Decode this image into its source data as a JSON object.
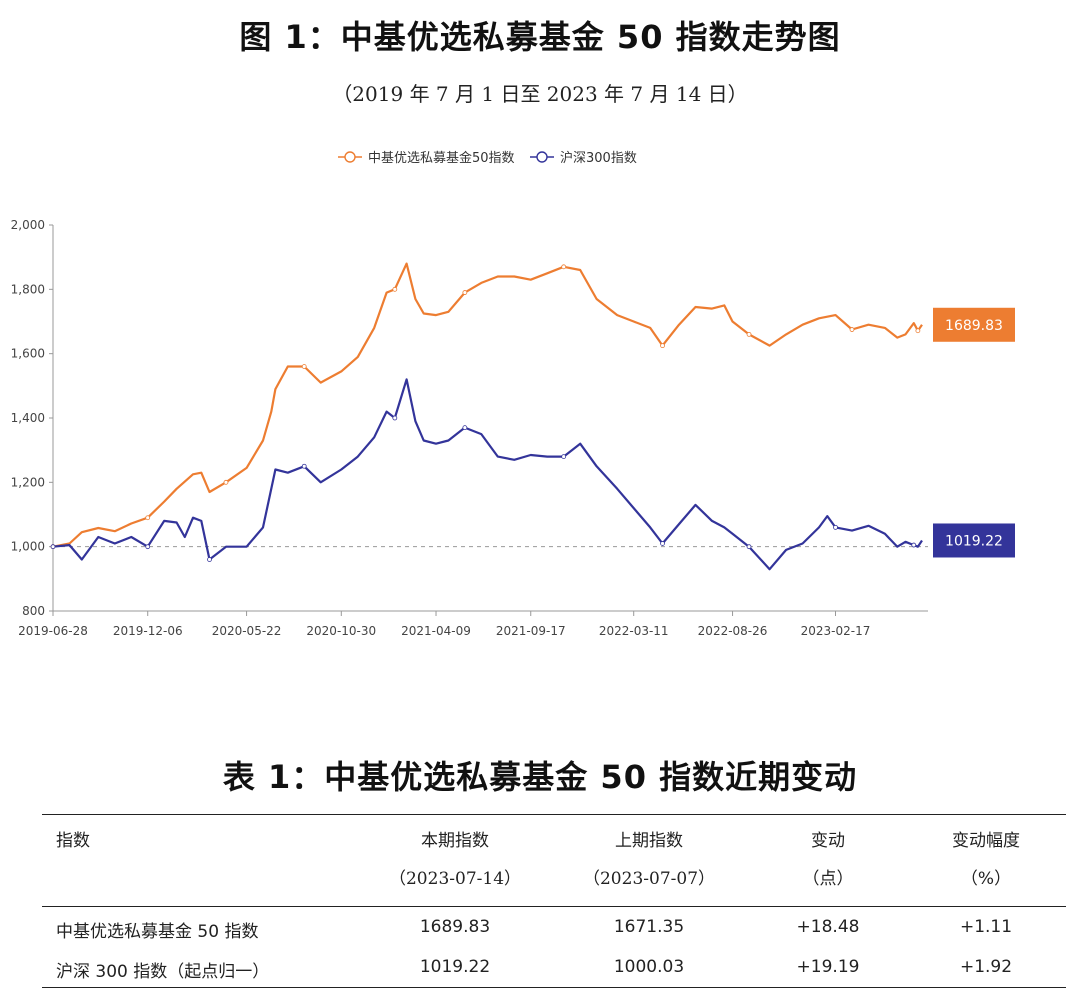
{
  "figure": {
    "title": "图 1：中基优选私募基金 50 指数走势图",
    "subtitle": "（2019 年 7 月 1 日至 2023 年 7 月 14 日）"
  },
  "chart_data": {
    "type": "line",
    "title": "",
    "xlabel": "",
    "ylabel": "",
    "ylim": [
      800,
      2000
    ],
    "yticks": [
      "800",
      "1,000",
      "1,200",
      "1,400",
      "1,600",
      "1,800",
      "2,000"
    ],
    "ytick_values": [
      800,
      1000,
      1200,
      1400,
      1600,
      1800,
      2000
    ],
    "xticks": [
      "2019-06-28",
      "2019-12-06",
      "2020-05-22",
      "2020-10-30",
      "2021-04-09",
      "2021-09-17",
      "2022-03-11",
      "2022-08-26",
      "2023-02-17"
    ],
    "x_start": "2019-06-28",
    "x_end": "2023-07-14",
    "baseline": 1000,
    "grid": false,
    "legend_position": "top-center",
    "series": [
      {
        "name": "中基优选私募基金50指数",
        "color": "#ed7d31",
        "end_label": "1689.83",
        "points": [
          [
            "2019-06-28",
            1000
          ],
          [
            "2019-07-26",
            1010
          ],
          [
            "2019-08-16",
            1045
          ],
          [
            "2019-09-13",
            1058
          ],
          [
            "2019-10-11",
            1048
          ],
          [
            "2019-11-08",
            1072
          ],
          [
            "2019-12-06",
            1090
          ],
          [
            "2020-01-03",
            1140
          ],
          [
            "2020-01-24",
            1180
          ],
          [
            "2020-02-21",
            1225
          ],
          [
            "2020-03-06",
            1230
          ],
          [
            "2020-03-20",
            1170
          ],
          [
            "2020-04-17",
            1200
          ],
          [
            "2020-05-22",
            1245
          ],
          [
            "2020-06-19",
            1330
          ],
          [
            "2020-07-03",
            1420
          ],
          [
            "2020-07-10",
            1490
          ],
          [
            "2020-07-31",
            1560
          ],
          [
            "2020-08-28",
            1560
          ],
          [
            "2020-09-25",
            1510
          ],
          [
            "2020-10-30",
            1545
          ],
          [
            "2020-11-27",
            1590
          ],
          [
            "2020-12-25",
            1680
          ],
          [
            "2021-01-15",
            1790
          ],
          [
            "2021-01-29",
            1800
          ],
          [
            "2021-02-18",
            1880
          ],
          [
            "2021-03-05",
            1770
          ],
          [
            "2021-03-19",
            1725
          ],
          [
            "2021-04-09",
            1720
          ],
          [
            "2021-04-30",
            1730
          ],
          [
            "2021-05-28",
            1790
          ],
          [
            "2021-06-25",
            1820
          ],
          [
            "2021-07-23",
            1840
          ],
          [
            "2021-08-20",
            1840
          ],
          [
            "2021-09-17",
            1830
          ],
          [
            "2021-10-15",
            1850
          ],
          [
            "2021-11-12",
            1870
          ],
          [
            "2021-12-10",
            1860
          ],
          [
            "2022-01-07",
            1770
          ],
          [
            "2022-02-11",
            1720
          ],
          [
            "2022-03-11",
            1700
          ],
          [
            "2022-04-08",
            1680
          ],
          [
            "2022-04-29",
            1625
          ],
          [
            "2022-05-27",
            1690
          ],
          [
            "2022-06-24",
            1745
          ],
          [
            "2022-07-22",
            1740
          ],
          [
            "2022-08-12",
            1750
          ],
          [
            "2022-08-26",
            1700
          ],
          [
            "2022-09-23",
            1660
          ],
          [
            "2022-10-28",
            1625
          ],
          [
            "2022-11-25",
            1660
          ],
          [
            "2022-12-23",
            1690
          ],
          [
            "2023-01-20",
            1710
          ],
          [
            "2023-02-17",
            1720
          ],
          [
            "2023-03-17",
            1675
          ],
          [
            "2023-04-14",
            1690
          ],
          [
            "2023-05-12",
            1680
          ],
          [
            "2023-06-02",
            1650
          ],
          [
            "2023-06-16",
            1660
          ],
          [
            "2023-06-30",
            1695
          ],
          [
            "2023-07-07",
            1671.35
          ],
          [
            "2023-07-14",
            1689.83
          ]
        ]
      },
      {
        "name": "沪深300指数",
        "color": "#33349a",
        "end_label": "1019.22",
        "points": [
          [
            "2019-06-28",
            1000
          ],
          [
            "2019-07-26",
            1005
          ],
          [
            "2019-08-16",
            960
          ],
          [
            "2019-09-13",
            1030
          ],
          [
            "2019-10-11",
            1010
          ],
          [
            "2019-11-08",
            1030
          ],
          [
            "2019-12-06",
            1000
          ],
          [
            "2020-01-03",
            1080
          ],
          [
            "2020-01-24",
            1075
          ],
          [
            "2020-02-07",
            1030
          ],
          [
            "2020-02-21",
            1090
          ],
          [
            "2020-03-06",
            1080
          ],
          [
            "2020-03-20",
            960
          ],
          [
            "2020-04-17",
            1000
          ],
          [
            "2020-05-22",
            1000
          ],
          [
            "2020-06-19",
            1060
          ],
          [
            "2020-07-10",
            1240
          ],
          [
            "2020-07-31",
            1230
          ],
          [
            "2020-08-28",
            1250
          ],
          [
            "2020-09-25",
            1200
          ],
          [
            "2020-10-30",
            1240
          ],
          [
            "2020-11-27",
            1280
          ],
          [
            "2020-12-25",
            1340
          ],
          [
            "2021-01-15",
            1420
          ],
          [
            "2021-01-29",
            1400
          ],
          [
            "2021-02-18",
            1520
          ],
          [
            "2021-03-05",
            1390
          ],
          [
            "2021-03-19",
            1330
          ],
          [
            "2021-04-09",
            1320
          ],
          [
            "2021-04-30",
            1330
          ],
          [
            "2021-05-28",
            1370
          ],
          [
            "2021-06-25",
            1350
          ],
          [
            "2021-07-23",
            1280
          ],
          [
            "2021-08-20",
            1270
          ],
          [
            "2021-09-17",
            1285
          ],
          [
            "2021-10-15",
            1280
          ],
          [
            "2021-11-12",
            1280
          ],
          [
            "2021-12-10",
            1320
          ],
          [
            "2022-01-07",
            1250
          ],
          [
            "2022-02-11",
            1180
          ],
          [
            "2022-03-11",
            1120
          ],
          [
            "2022-04-08",
            1060
          ],
          [
            "2022-04-29",
            1010
          ],
          [
            "2022-05-27",
            1070
          ],
          [
            "2022-06-24",
            1130
          ],
          [
            "2022-07-22",
            1080
          ],
          [
            "2022-08-12",
            1060
          ],
          [
            "2022-08-26",
            1040
          ],
          [
            "2022-09-23",
            1000
          ],
          [
            "2022-10-28",
            930
          ],
          [
            "2022-11-25",
            990
          ],
          [
            "2022-12-23",
            1010
          ],
          [
            "2023-01-20",
            1060
          ],
          [
            "2023-02-03",
            1095
          ],
          [
            "2023-02-17",
            1060
          ],
          [
            "2023-03-17",
            1050
          ],
          [
            "2023-04-14",
            1065
          ],
          [
            "2023-05-12",
            1040
          ],
          [
            "2023-06-02",
            1000
          ],
          [
            "2023-06-16",
            1015
          ],
          [
            "2023-06-30",
            1005
          ],
          [
            "2023-07-07",
            1000.03
          ],
          [
            "2023-07-14",
            1019.22
          ]
        ]
      }
    ]
  },
  "table": {
    "title": "表 1：中基优选私募基金 50 指数近期变动",
    "headers": [
      {
        "line1": "指数",
        "line2": ""
      },
      {
        "line1": "本期指数",
        "line2": "（2023-07-14）"
      },
      {
        "line1": "上期指数",
        "line2": "（2023-07-07）"
      },
      {
        "line1": "变动",
        "line2": "（点）"
      },
      {
        "line1": "变动幅度",
        "line2": "（%）"
      }
    ],
    "rows": [
      [
        "中基优选私募基金 50 指数",
        "1689.83",
        "1671.35",
        "+18.48",
        "+1.11"
      ],
      [
        "沪深 300 指数（起点归一）",
        "1019.22",
        "1000.03",
        "+19.19",
        "+1.92"
      ]
    ]
  }
}
